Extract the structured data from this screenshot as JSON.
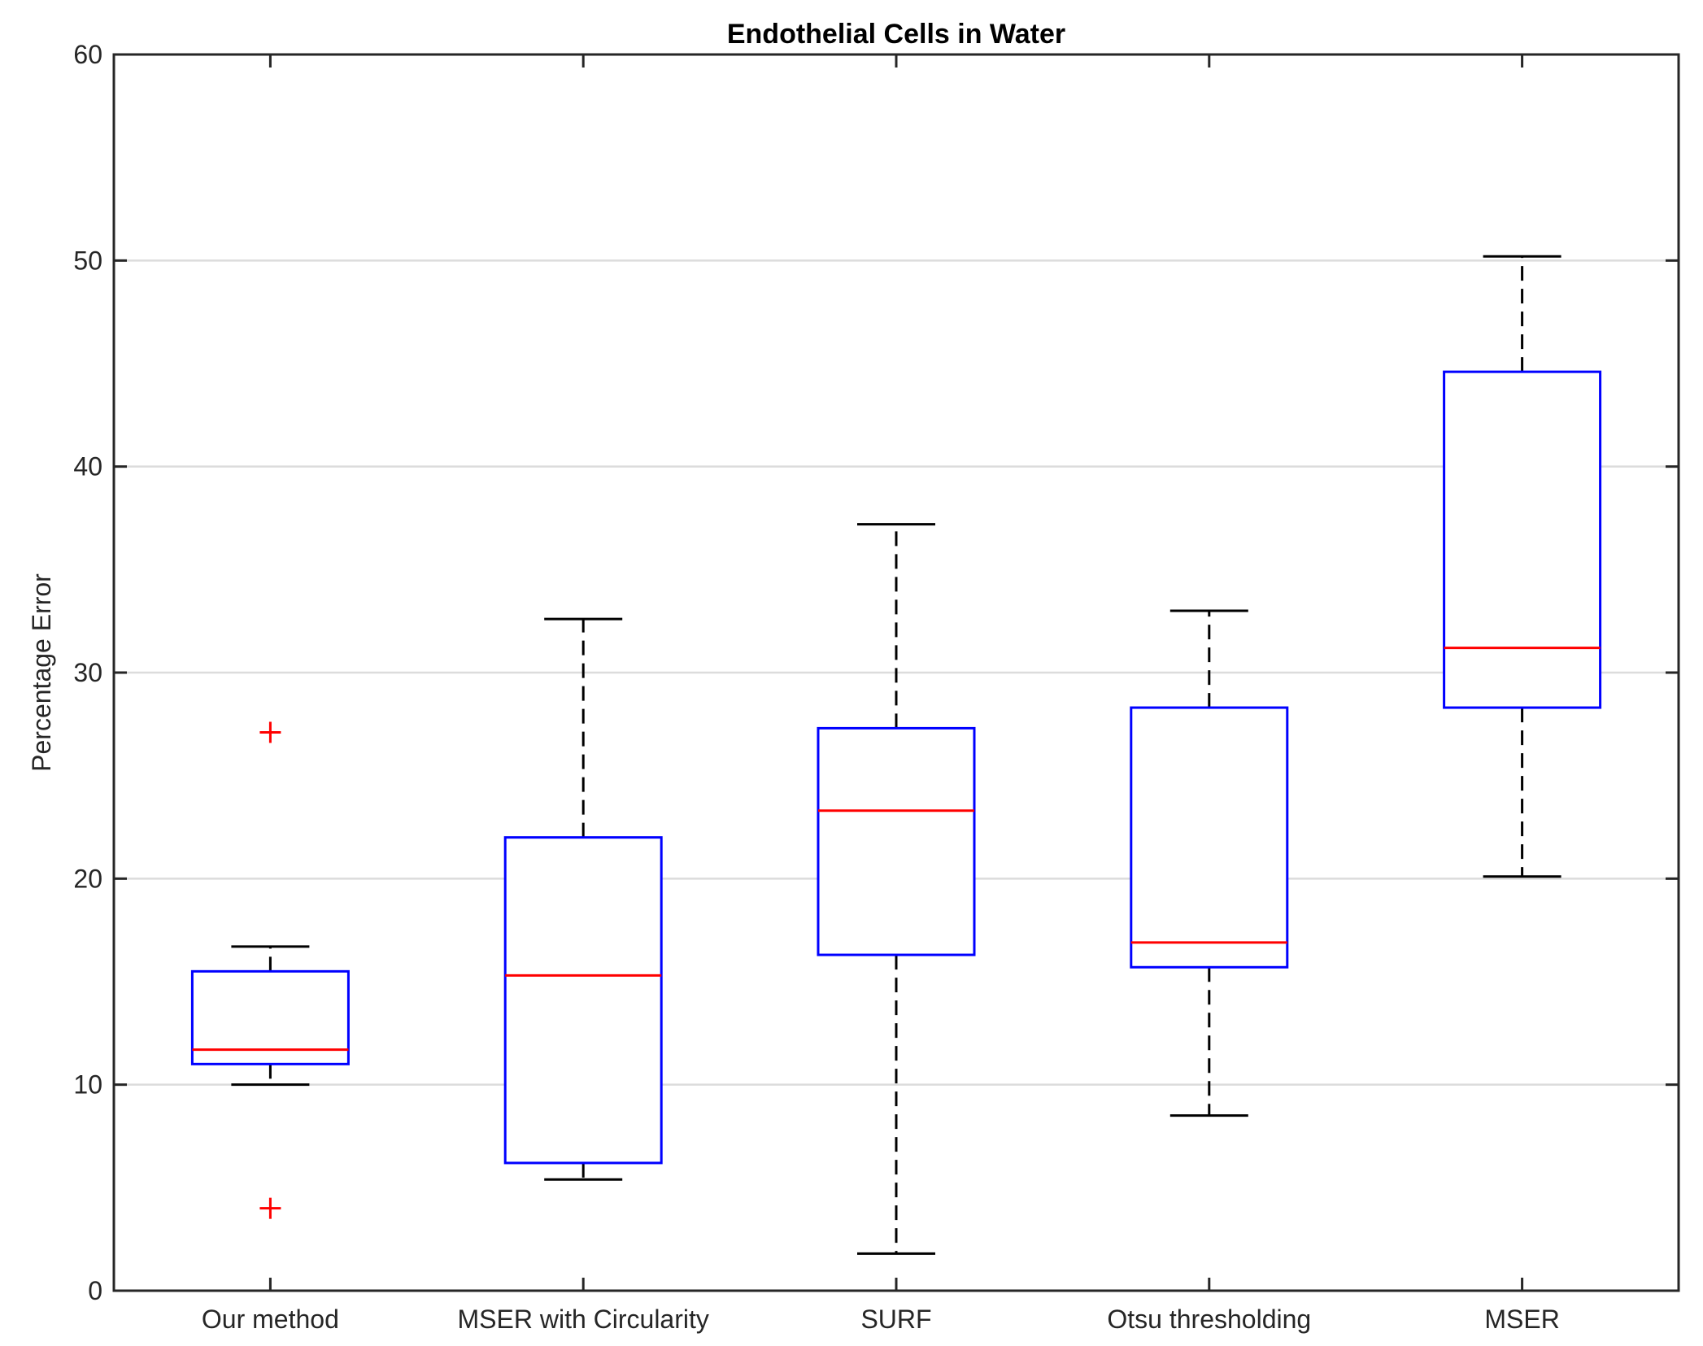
{
  "chart_data": {
    "type": "box",
    "title": "Endothelial Cells in Water",
    "xlabel": "",
    "ylabel": "Percentage Error",
    "ylim": [
      0,
      60
    ],
    "yticks": [
      0,
      10,
      20,
      30,
      40,
      50,
      60
    ],
    "ytick_labels": [
      "0",
      "10",
      "20",
      "30",
      "40",
      "50",
      "60"
    ],
    "grid": "horizontal",
    "categories": [
      "Our method",
      "MSER with Circularity",
      "SURF",
      "Otsu thresholding",
      "MSER"
    ],
    "boxes": [
      {
        "label": "Our method",
        "whisker_low": 10.0,
        "q1": 11.0,
        "median": 11.7,
        "q3": 15.5,
        "whisker_high": 16.7,
        "outliers": [
          27.1,
          4.0
        ]
      },
      {
        "label": "MSER with Circularity",
        "whisker_low": 5.4,
        "q1": 6.2,
        "median": 15.3,
        "q3": 22.0,
        "whisker_high": 32.6,
        "outliers": []
      },
      {
        "label": "SURF",
        "whisker_low": 1.8,
        "q1": 16.3,
        "median": 23.3,
        "q3": 27.3,
        "whisker_high": 37.2,
        "outliers": []
      },
      {
        "label": "Otsu thresholding",
        "whisker_low": 8.5,
        "q1": 15.7,
        "median": 16.9,
        "q3": 28.3,
        "whisker_high": 33.0,
        "outliers": []
      },
      {
        "label": "MSER",
        "whisker_low": 20.1,
        "q1": 28.3,
        "median": 31.2,
        "q3": 44.6,
        "whisker_high": 50.2,
        "outliers": []
      }
    ],
    "colors": {
      "box": "#0000ff",
      "median": "#ff0000",
      "whisker": "#000000",
      "outlier": "#ff0000",
      "grid": "#dcdcdc",
      "axis": "#262626"
    }
  }
}
